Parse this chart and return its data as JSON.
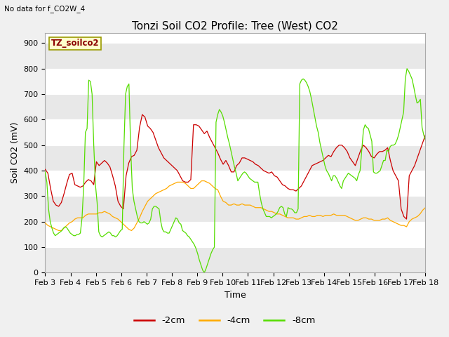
{
  "title": "Tonzi Soil CO2 Profile: Tree (West) CO2",
  "note": "No data for f_CO2W_4",
  "xlabel": "Time",
  "ylabel": "Soil CO2 (mV)",
  "legend_label": "TZ_soilco2",
  "ylim": [
    0,
    940
  ],
  "yticks": [
    0,
    100,
    200,
    300,
    400,
    500,
    600,
    700,
    800,
    900
  ],
  "xtick_labels": [
    "Feb 3",
    "Feb 4",
    "Feb 5",
    "Feb 6",
    "Feb 7",
    "Feb 8",
    "Feb 9",
    "Feb 10",
    "Feb 11",
    "Feb 12",
    "Feb 13",
    "Feb 14",
    "Feb 15",
    "Feb 16",
    "Feb 17",
    "Feb 18"
  ],
  "line_color_2cm": "#cc0000",
  "line_color_4cm": "#ffaa00",
  "line_color_8cm": "#55dd00",
  "legend_labels": [
    "-2cm",
    "-4cm",
    "-8cm"
  ],
  "fig_bg": "#f0f0f0",
  "plot_bg": "#ffffff",
  "band_color": "#e8e8e8",
  "title_fontsize": 11,
  "label_fontsize": 9,
  "tick_fontsize": 8,
  "m2cm": [
    405,
    390,
    330,
    280,
    265,
    260,
    275,
    310,
    350,
    385,
    390,
    345,
    340,
    335,
    340,
    355,
    365,
    360,
    345,
    435,
    420,
    430,
    440,
    430,
    415,
    380,
    340,
    280,
    260,
    250,
    380,
    430,
    455,
    460,
    480,
    570,
    620,
    610,
    575,
    565,
    550,
    520,
    490,
    470,
    450,
    440,
    430,
    420,
    410,
    400,
    380,
    360,
    355,
    355,
    365,
    580,
    580,
    575,
    560,
    545,
    555,
    530,
    510,
    490,
    470,
    445,
    425,
    440,
    420,
    395,
    395,
    420,
    430,
    450,
    450,
    445,
    440,
    435,
    425,
    420,
    410,
    400,
    395,
    390,
    395,
    380,
    375,
    360,
    345,
    340,
    330,
    325,
    325,
    320,
    330,
    340,
    360,
    380,
    400,
    420,
    425,
    430,
    435,
    440,
    450,
    460,
    455,
    475,
    490,
    500,
    500,
    490,
    475,
    450,
    435,
    420,
    450,
    480,
    500,
    490,
    475,
    455,
    450,
    465,
    475,
    475,
    480,
    490,
    440,
    400,
    380,
    360,
    250,
    220,
    210,
    380,
    400,
    420,
    450,
    480,
    510,
    540
  ],
  "m4cm": [
    195,
    185,
    180,
    175,
    170,
    165,
    165,
    175,
    185,
    195,
    200,
    210,
    215,
    215,
    215,
    225,
    230,
    230,
    230,
    230,
    235,
    235,
    240,
    235,
    230,
    220,
    215,
    210,
    200,
    190,
    180,
    170,
    165,
    175,
    195,
    215,
    240,
    260,
    280,
    290,
    300,
    310,
    315,
    320,
    325,
    330,
    340,
    345,
    350,
    355,
    355,
    355,
    350,
    340,
    330,
    330,
    340,
    350,
    360,
    360,
    355,
    350,
    340,
    330,
    325,
    300,
    280,
    275,
    265,
    265,
    270,
    265,
    265,
    270,
    265,
    265,
    265,
    260,
    255,
    255,
    255,
    250,
    245,
    240,
    240,
    235,
    230,
    230,
    225,
    220,
    215,
    215,
    215,
    210,
    210,
    215,
    220,
    220,
    225,
    220,
    220,
    225,
    225,
    220,
    225,
    225,
    225,
    230,
    225,
    225,
    225,
    225,
    220,
    215,
    210,
    205,
    205,
    210,
    215,
    215,
    210,
    210,
    205,
    205,
    205,
    210,
    210,
    215,
    205,
    200,
    195,
    190,
    185,
    185,
    180,
    200,
    210,
    215,
    220,
    230,
    245,
    255
  ],
  "m8cm": [
    395,
    355,
    250,
    200,
    175,
    155,
    145,
    150,
    155,
    160,
    165,
    175,
    180,
    175,
    165,
    155,
    150,
    145,
    145,
    150,
    150,
    155,
    215,
    340,
    550,
    565,
    755,
    750,
    700,
    500,
    345,
    275,
    160,
    145,
    140,
    145,
    150,
    155,
    160,
    155,
    145,
    145,
    140,
    145,
    155,
    165,
    170,
    490,
    700,
    730,
    740,
    495,
    330,
    280,
    250,
    220,
    200,
    195,
    195,
    200,
    195,
    190,
    195,
    210,
    250,
    260,
    260,
    255,
    250,
    200,
    170,
    160,
    160,
    155,
    155,
    170,
    185,
    200,
    215,
    210,
    195,
    190,
    165,
    160,
    155,
    145,
    140,
    130,
    120,
    110,
    95,
    75,
    50,
    30,
    10,
    0,
    15,
    35,
    55,
    75,
    90,
    100,
    590,
    620,
    640,
    630,
    615,
    590,
    560,
    530,
    505,
    475,
    445,
    415,
    390,
    360,
    370,
    380,
    390,
    395,
    390,
    380,
    370,
    365,
    360,
    355,
    355,
    355,
    310,
    275,
    250,
    235,
    220,
    220,
    220,
    215,
    220,
    225,
    230,
    240,
    255,
    260,
    255,
    230,
    220,
    255,
    250,
    250,
    245,
    235,
    235,
    250,
    740,
    755,
    760,
    755,
    745,
    730,
    710,
    680,
    645,
    610,
    575,
    550,
    510,
    480,
    450,
    420,
    400,
    390,
    375,
    360,
    380,
    380,
    370,
    355,
    340,
    330,
    360,
    370,
    380,
    390,
    385,
    380,
    375,
    370,
    360,
    385,
    400,
    480,
    560,
    580,
    570,
    565,
    540,
    515,
    395,
    390,
    390,
    395,
    400,
    420,
    440,
    440,
    480,
    475,
    495,
    500,
    500,
    505,
    520,
    540,
    570,
    600,
    630,
    760,
    800,
    790,
    775,
    760,
    730,
    695,
    665,
    670,
    680,
    570,
    540,
    520
  ]
}
